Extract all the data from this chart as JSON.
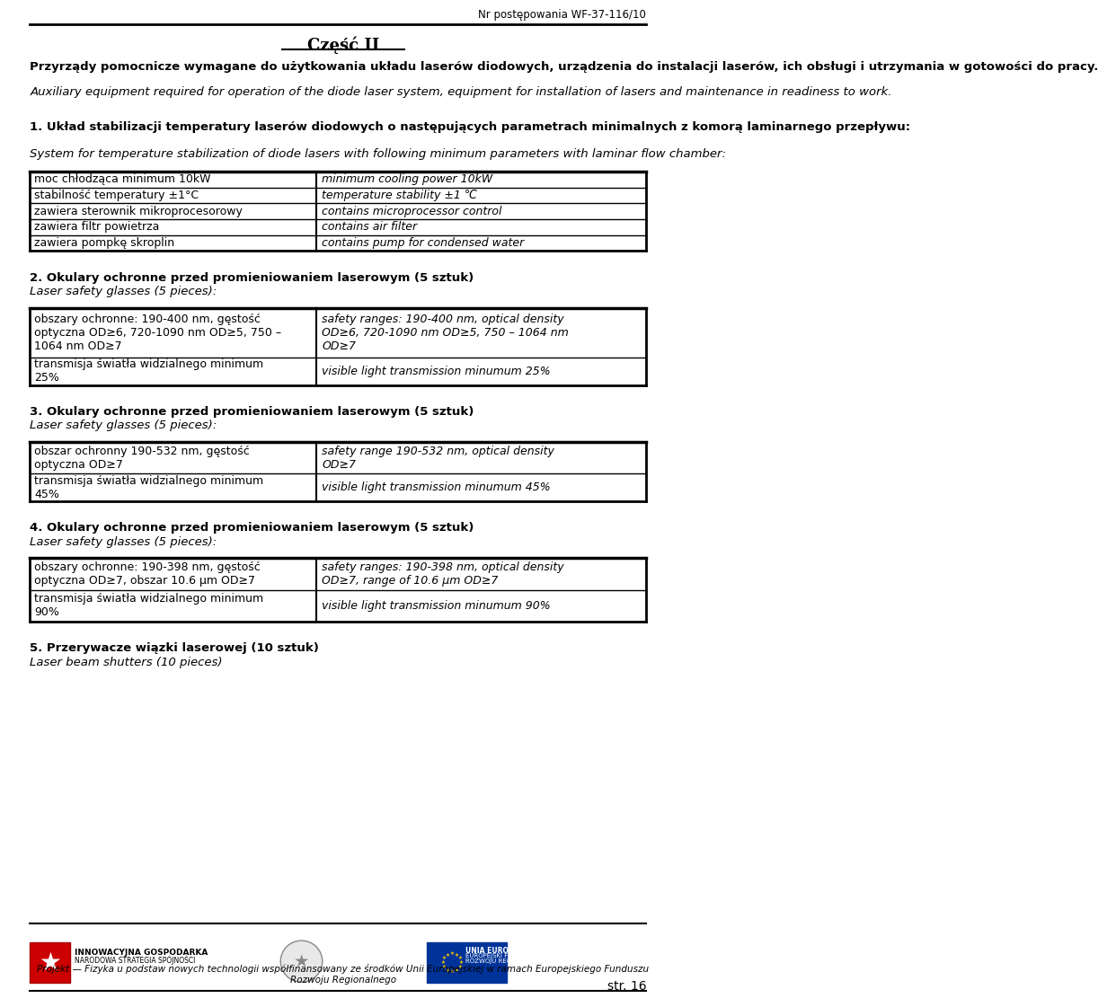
{
  "header_right": "Nr postępowania WF-37-116/10",
  "title": "Część II",
  "intro_pl": "Przyrządy pomocnicze wymagane do użytkowania układu laserów diodowych, urządzenia do instalacji laserów, ich obsługi i utrzymania w gotowości do pracy.",
  "intro_en": "Auxiliary equipment required for operation of the diode laser system, equipment for installation of lasers and maintenance in readiness to work.",
  "section1_heading_pl": "1. Układ stabilizacji temperatury laserów diodowych o następujących parametrach minimalnych z komorą laminarnego przepływu:",
  "section1_heading_en": "System for temperature stabilization of diode lasers with following minimum parameters with laminar flow chamber:",
  "table1": [
    [
      "moc chłodząca minimum 10kW",
      "minimum cooling power 10kW"
    ],
    [
      "stabilność temperatury ±1°C",
      "temperature stability ±1 ℃"
    ],
    [
      "zawiera sterownik mikroprocesorowy",
      "contains microprocessor control"
    ],
    [
      "zawiera filtr powietrza",
      "contains air filter"
    ],
    [
      "zawiera pompkę skroplin",
      "contains pump for condensed water"
    ]
  ],
  "section2_heading_pl": "2. Okulary ochronne przed promieniowaniem laserowym (5 sztuk)",
  "section2_heading_en": "Laser safety glasses (5 pieces):",
  "table2_row1_pl": "obszary ochronne: 190-400 nm, gęstość\noptyczna OD≥6, 720-1090 nm OD≥5, 750 –\n1064 nm OD≥7",
  "table2_row1_en": "safety ranges: 190-400 nm, optical density\nOD≥6, 720-1090 nm OD≥5, 750 – 1064 nm\nOD≥7",
  "table2_row2_pl": "transmisja światła widzialnego minimum\n25%",
  "table2_row2_en": "visible light transmission minumum 25%",
  "section3_heading_pl": "3. Okulary ochronne przed promieniowaniem laserowym (5 sztuk)",
  "section3_heading_en": "Laser safety glasses (5 pieces):",
  "table3_row1_pl": "obszar ochronny 190-532 nm, gęstość\noptyczna OD≥7",
  "table3_row1_en": "safety range 190-532 nm, optical density\nOD≥7",
  "table3_row2_pl": "transmisja światła widzialnego minimum\n45%",
  "table3_row2_en": "visible light transmission minumum 45%",
  "section4_heading_pl": "4. Okulary ochronne przed promieniowaniem laserowym (5 sztuk)",
  "section4_heading_en": "Laser safety glasses (5 pieces):",
  "table4_row1_pl": "obszary ochronne: 190-398 nm, gęstość\noptyczna OD≥7, obszar 10.6 μm OD≥7",
  "table4_row1_en": "safety ranges: 190-398 nm, optical density\nOD≥7, range of 10.6 μm OD≥7",
  "table4_row2_pl": "transmisja światła widzialnego minimum\n90%",
  "table4_row2_en": "visible light transmission minumum 90%",
  "section5_heading_pl": "5. Przerywacze wiązki laserowej (10 sztuk)",
  "section5_heading_en": "Laser beam shutters (10 pieces)",
  "footer_text_1": "Projekt ",
  "footer_text_italic": "Fizyka u podstaw nowych technologii",
  "footer_text_2": " współfinansowany ze środków Unii Europejskiej w ramach Europejskiego Funduszu Rozwoju Regionalnego",
  "footer_line2": "Rozwoju Regionalnego",
  "page_num": "str. 16",
  "bg_color": "#ffffff",
  "text_color": "#000000",
  "table_col_split": 0.465,
  "logo1_text1": "INNOWACYJNA GOSPODARKA",
  "logo1_text2": "NARODOWA STRATEGIA SPÓJNOŚCI",
  "logo3_text1": "UNIA EUROPEJSKA",
  "logo3_text2": "EUROPEJSKI FUNDUSZ",
  "logo3_text3": "ROZWOJU REGIONALNEGO"
}
